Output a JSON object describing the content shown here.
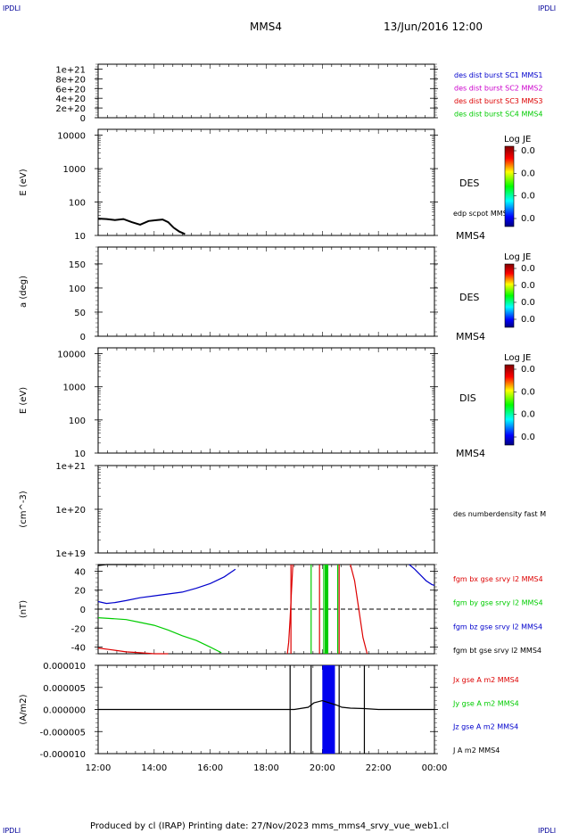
{
  "header": {
    "corner_label": "IPDLI",
    "spacecraft": "MMS4",
    "date": "13/Jun/2016 12:00"
  },
  "footer": {
    "text": "Produced by cl (IRAP)   Printing date: 27/Nov/2023   mms_mms4_srvy_vue_web1.cl"
  },
  "colors": {
    "blue": "#0000cc",
    "magenta": "#cc00cc",
    "red": "#dd0000",
    "green": "#00cc00",
    "black": "#000000"
  },
  "chart_data": [
    {
      "type": "line",
      "panel": "burst",
      "ylim": [
        0,
        1.1e+21
      ],
      "yticks": [
        {
          "label": "1e+21",
          "value": 1e+21
        },
        {
          "label": "8e+20",
          "value": 8e+20
        },
        {
          "label": "6e+20",
          "value": 6e+20
        },
        {
          "label": "4e+20",
          "value": 4e+20
        },
        {
          "label": "2e+20",
          "value": 2e+20
        },
        {
          "label": "0",
          "value": 0
        }
      ],
      "dashed_zero": true,
      "legend": [
        {
          "text": "des dist burst SC1 MMS1",
          "color": "#0000cc"
        },
        {
          "text": "des dist burst SC2 MMS2",
          "color": "#cc00cc"
        },
        {
          "text": "des dist burst SC3 MMS3",
          "color": "#dd0000"
        },
        {
          "text": "des dist burst SC4 MMS4",
          "color": "#00cc00"
        }
      ]
    },
    {
      "type": "heatmap",
      "panel": "des-energy",
      "ylabel": "E (eV)",
      "yscale": "log",
      "ylim": [
        10,
        15000
      ],
      "yticks": [
        {
          "label": "10000",
          "value": 10000
        },
        {
          "label": "1000",
          "value": 1000
        },
        {
          "label": "100",
          "value": 100
        },
        {
          "label": "10",
          "value": 10
        }
      ],
      "side_label": "DES",
      "side_label2": "edp scpot MMS4",
      "bottom_tag": "MMS4",
      "colorbar": {
        "title": "Log JE",
        "labels": [
          "0.0",
          "0.0",
          "0.0",
          "0.0"
        ]
      },
      "series": [
        {
          "name": "edp scpot MMS4",
          "color": "#000000",
          "x": [
            12.0,
            12.3,
            12.6,
            12.9,
            13.2,
            13.5,
            13.8,
            14.1,
            14.3,
            14.5,
            14.7,
            14.9,
            15.1
          ],
          "y": [
            32,
            31,
            29,
            31,
            25,
            21,
            27,
            29,
            30,
            25,
            17,
            13,
            11
          ]
        }
      ]
    },
    {
      "type": "heatmap",
      "panel": "des-pitch",
      "ylabel": "a (deg)",
      "ylim": [
        0,
        185
      ],
      "yticks": [
        {
          "label": "150",
          "value": 150
        },
        {
          "label": "100",
          "value": 100
        },
        {
          "label": "50",
          "value": 50
        },
        {
          "label": "0",
          "value": 0
        }
      ],
      "side_label": "DES",
      "bottom_tag": "MMS4",
      "colorbar": {
        "title": "Log JE",
        "labels": [
          "0.0",
          "0.0",
          "0.0",
          "0.0"
        ]
      }
    },
    {
      "type": "heatmap",
      "panel": "dis-energy",
      "ylabel": "E (eV)",
      "yscale": "log",
      "ylim": [
        10,
        15000
      ],
      "yticks": [
        {
          "label": "10000",
          "value": 10000
        },
        {
          "label": "1000",
          "value": 1000
        },
        {
          "label": "100",
          "value": 100
        },
        {
          "label": "10",
          "value": 10
        }
      ],
      "side_label": "DIS",
      "bottom_tag": "MMS4",
      "colorbar": {
        "title": "Log JE",
        "labels": [
          "0.0",
          "0.0",
          "0.0",
          "0.0"
        ]
      }
    },
    {
      "type": "line",
      "panel": "density",
      "ylabel": "(cm^-3)",
      "yscale": "log",
      "ylim": [
        1e+19,
        1e+21
      ],
      "yticks": [
        {
          "label": "1e+21",
          "value": 1e+21
        },
        {
          "label": "1e+20",
          "value": 1e+20
        },
        {
          "label": "1e+19",
          "value": 1e+19
        }
      ],
      "side_label": "des numberdensity fast M"
    },
    {
      "type": "line",
      "panel": "fgm",
      "ylabel": "(nT)",
      "ylim": [
        -47,
        47
      ],
      "yticks": [
        {
          "label": "40",
          "value": 40
        },
        {
          "label": "20",
          "value": 20
        },
        {
          "label": "0",
          "value": 0
        },
        {
          "label": "-20",
          "value": -20
        },
        {
          "label": "-40",
          "value": -40
        }
      ],
      "dashed_zero": true,
      "legend": [
        {
          "text": "fgm bx gse srvy l2 MMS4",
          "color": "#dd0000"
        },
        {
          "text": "fgm by gse srvy l2 MMS4",
          "color": "#00cc00"
        },
        {
          "text": "fgm bz gse srvy l2 MMS4",
          "color": "#0000cc"
        },
        {
          "text": "fgm bt gse srvy l2 MMS4",
          "color": "#000000"
        }
      ],
      "series": [
        {
          "name": "fgm bt gse srvy l2 MMS4",
          "color": "#000000",
          "x": [
            12.0,
            12.3,
            12.6,
            13.0,
            13.4,
            13.6
          ],
          "y": [
            46,
            47,
            47,
            47,
            47,
            47
          ]
        },
        {
          "name": "fgm bz gse srvy l2 MMS4",
          "color": "#0000cc",
          "x": [
            12.0,
            12.3,
            12.6,
            13.0,
            13.5,
            14.0,
            14.5,
            15.0,
            15.5,
            16.0,
            16.5,
            16.9
          ],
          "y": [
            8,
            6,
            7,
            9,
            12,
            14,
            16,
            18,
            22,
            27,
            34,
            42
          ]
        },
        {
          "name": "fgm by gse srvy l2 MMS4",
          "color": "#00cc00",
          "x": [
            12.0,
            12.5,
            13.0,
            13.5,
            14.0,
            14.5,
            15.0,
            15.5,
            16.0,
            16.4
          ],
          "y": [
            -9,
            -10,
            -11,
            -14,
            -17,
            -22,
            -28,
            -33,
            -40,
            -46
          ]
        },
        {
          "name": "fgm bx gse srvy l2 MMS4",
          "color": "#dd0000",
          "x": [
            12.0,
            12.5,
            13.0,
            13.5,
            14.0,
            14.5
          ],
          "y": [
            -41,
            -43,
            -45,
            -46,
            -47,
            -47
          ]
        },
        {
          "name": "fgm bx gse srvy l2 MMS4 (late)",
          "color": "#dd0000",
          "x": [
            18.75,
            18.8,
            18.85,
            18.9,
            18.95
          ],
          "y": [
            -47,
            -35,
            -10,
            20,
            47
          ]
        },
        {
          "name": "fgm bx gse srvy l2 MMS4 (end)",
          "color": "#dd0000",
          "x": [
            21.0,
            21.15,
            21.3,
            21.45,
            21.6
          ],
          "y": [
            47,
            30,
            0,
            -30,
            -47
          ]
        },
        {
          "name": "fgm bz gse srvy l2 MMS4 (end)",
          "color": "#0000cc",
          "x": [
            23.1,
            23.3,
            23.5,
            23.7,
            23.9,
            24.0
          ],
          "y": [
            47,
            42,
            36,
            30,
            26,
            25
          ]
        }
      ],
      "vlines": [
        {
          "x": 18.88,
          "color": "#dd0000"
        },
        {
          "x": 19.6,
          "color": "#00cc00"
        },
        {
          "x": 19.9,
          "color": "#dd0000"
        },
        {
          "x": 20.05,
          "color": "#00cc00"
        },
        {
          "x": 20.15,
          "color": "#00cc00",
          "wide": true
        },
        {
          "x": 20.55,
          "color": "#00cc00"
        },
        {
          "x": 20.6,
          "color": "#dd0000"
        }
      ]
    },
    {
      "type": "line",
      "panel": "current",
      "ylabel": "(A/m2)",
      "ylim": [
        -1e-05,
        1e-05
      ],
      "yticks": [
        {
          "label": "0.000010",
          "value": 1e-05
        },
        {
          "label": "0.000005",
          "value": 5e-06
        },
        {
          "label": "0.000000",
          "value": 0
        },
        {
          "label": "-0.000005",
          "value": -5e-06
        },
        {
          "label": "-0.000010",
          "value": -1e-05
        }
      ],
      "xlim": [
        12,
        24
      ],
      "xticks": [
        {
          "label": "12:00",
          "value": 12
        },
        {
          "label": "14:00",
          "value": 14
        },
        {
          "label": "16:00",
          "value": 16
        },
        {
          "label": "18:00",
          "value": 18
        },
        {
          "label": "20:00",
          "value": 20
        },
        {
          "label": "22:00",
          "value": 22
        },
        {
          "label": "00:00",
          "value": 24
        }
      ],
      "legend": [
        {
          "text": "Jx gse A m2 MMS4",
          "color": "#dd0000"
        },
        {
          "text": "Jy gse A m2 MMS4",
          "color": "#00cc00"
        },
        {
          "text": "Jz gse A m2 MMS4",
          "color": "#0000cc"
        },
        {
          "text": "J A m2 MMS4",
          "color": "#000000"
        }
      ],
      "series": [
        {
          "name": "J A m2 MMS4",
          "color": "#000000",
          "x": [
            12,
            13,
            14,
            15,
            16,
            17,
            18,
            18.8,
            19,
            19.5,
            19.7,
            20.0,
            20.5,
            20.7,
            21,
            21.5,
            22,
            23,
            24
          ],
          "y": [
            0,
            0,
            0,
            0,
            0,
            0,
            0,
            0,
            0,
            5e-07,
            1.5e-06,
            2e-06,
            1e-06,
            5e-07,
            3e-07,
            2e-07,
            0,
            0,
            0
          ]
        }
      ],
      "bands": [
        {
          "x0": 20.0,
          "x1": 20.45,
          "color": "#0000ee"
        }
      ],
      "vlines": [
        {
          "x": 18.85,
          "color": "#000000"
        },
        {
          "x": 19.6,
          "color": "#000000"
        },
        {
          "x": 20.6,
          "color": "#000000"
        },
        {
          "x": 21.5,
          "color": "#000000"
        }
      ]
    }
  ]
}
